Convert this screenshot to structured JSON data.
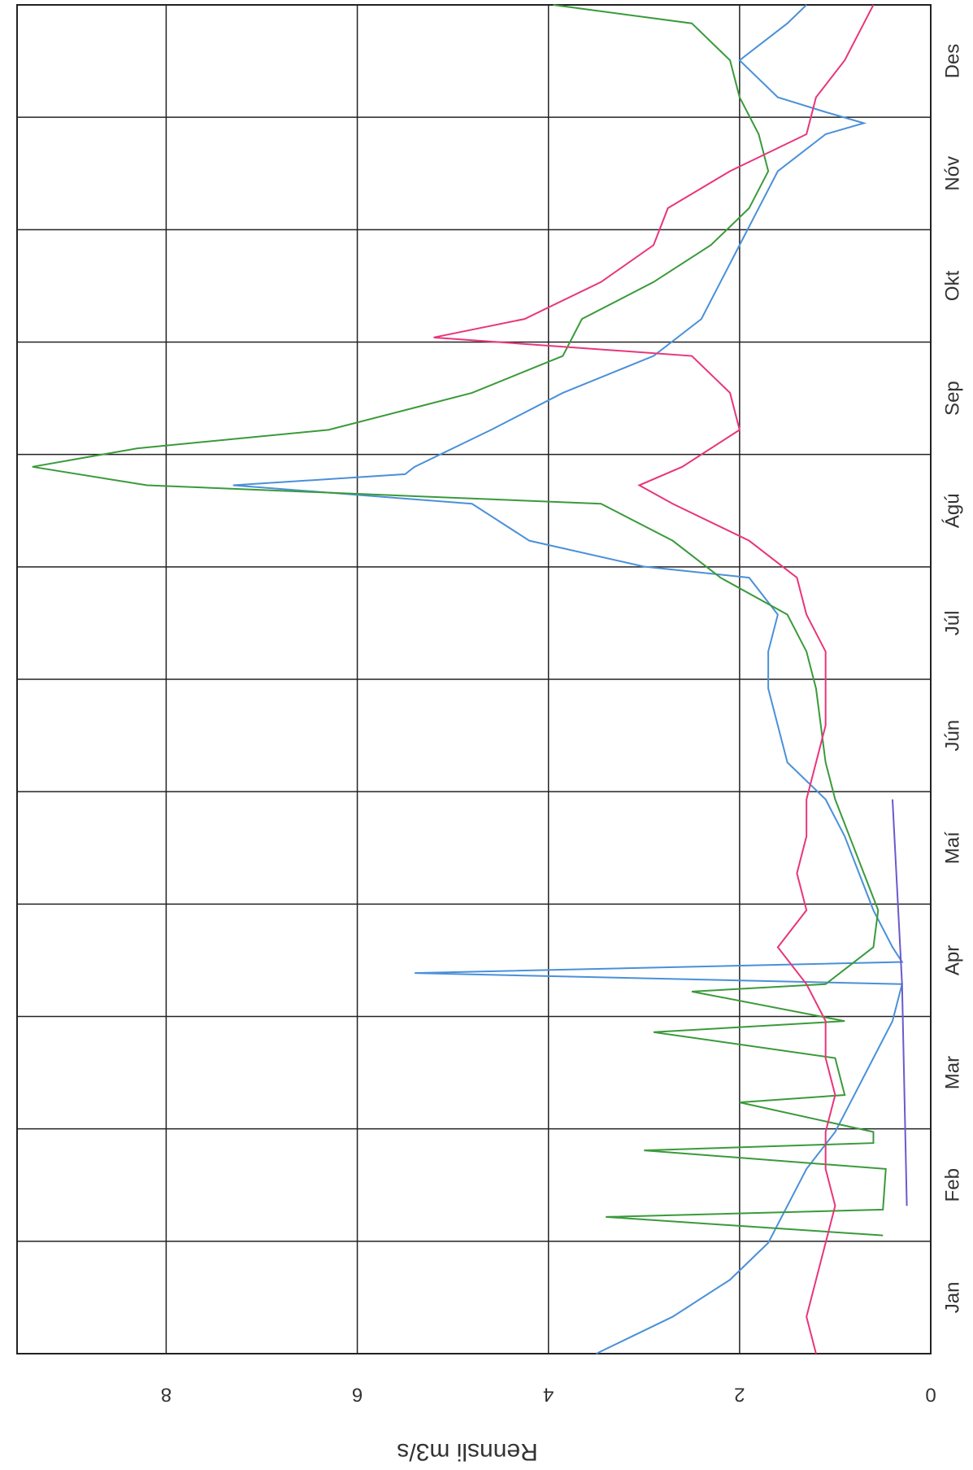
{
  "chart_data": {
    "type": "line",
    "y_label": "Rennsli m3/s",
    "categories": [
      "Jan",
      "Feb",
      "Mar",
      "Apr",
      "Maí",
      "Jún",
      "Júl",
      "Ágú",
      "Sep",
      "Okt",
      "Nóv",
      "Des"
    ],
    "xlim": [
      0,
      365
    ],
    "ylim": [
      0,
      9.56
    ],
    "yticks": [
      0,
      2,
      4,
      6,
      8
    ],
    "grid": true,
    "series": [
      {
        "color": "#4a90d9",
        "x": [
          0,
          10,
          20,
          30,
          40,
          50,
          60,
          70,
          80,
          90,
          100,
          103,
          106,
          110,
          120,
          130,
          140,
          150,
          160,
          170,
          180,
          190,
          200,
          210,
          213,
          220,
          230,
          235,
          238,
          240,
          250,
          260,
          270,
          280,
          290,
          300,
          310,
          320,
          330,
          333,
          336,
          340,
          350,
          360,
          365
        ],
        "values": [
          3.5,
          2.7,
          2.1,
          1.7,
          1.5,
          1.3,
          1.0,
          0.8,
          0.6,
          0.4,
          0.3,
          5.4,
          0.3,
          0.4,
          0.6,
          0.75,
          0.9,
          1.1,
          1.5,
          1.6,
          1.7,
          1.7,
          1.6,
          1.9,
          3.0,
          4.2,
          4.8,
          7.3,
          5.5,
          5.4,
          4.6,
          3.85,
          2.9,
          2.4,
          2.2,
          2.0,
          1.8,
          1.6,
          1.1,
          0.7,
          1.1,
          1.6,
          2.0,
          1.5,
          1.3
        ]
      },
      {
        "color": "#3a9a3a",
        "x": [
          32,
          37,
          39,
          50,
          55,
          57,
          60,
          68,
          70,
          80,
          87,
          90,
          98,
          100,
          110,
          120,
          130,
          140,
          150,
          160,
          170,
          180,
          190,
          200,
          210,
          220,
          230,
          235,
          240,
          245,
          250,
          260,
          270,
          280,
          290,
          300,
          310,
          320,
          330,
          340,
          350,
          360,
          365
        ],
        "values": [
          0.5,
          3.4,
          0.5,
          0.47,
          3.0,
          0.6,
          0.6,
          2.0,
          0.9,
          1.0,
          2.9,
          0.9,
          2.5,
          1.1,
          0.6,
          0.55,
          0.7,
          0.85,
          1.0,
          1.1,
          1.15,
          1.2,
          1.3,
          1.5,
          2.2,
          2.7,
          3.45,
          8.2,
          9.4,
          8.3,
          6.3,
          4.8,
          3.85,
          3.65,
          2.9,
          2.3,
          1.9,
          1.7,
          1.8,
          2.0,
          2.1,
          2.5,
          3.95
        ]
      },
      {
        "color": "#e8357a",
        "x": [
          0,
          10,
          20,
          30,
          40,
          50,
          60,
          70,
          80,
          90,
          100,
          110,
          120,
          130,
          140,
          150,
          160,
          170,
          180,
          190,
          200,
          210,
          220,
          230,
          235,
          240,
          250,
          260,
          270,
          275,
          280,
          290,
          300,
          310,
          320,
          330,
          340,
          350,
          360,
          365
        ],
        "values": [
          1.2,
          1.3,
          1.2,
          1.1,
          1.0,
          1.1,
          1.1,
          1.0,
          1.1,
          1.1,
          1.3,
          1.6,
          1.3,
          1.4,
          1.3,
          1.3,
          1.2,
          1.1,
          1.1,
          1.1,
          1.3,
          1.4,
          1.9,
          2.7,
          3.05,
          2.6,
          2.0,
          2.1,
          2.5,
          5.2,
          4.25,
          3.45,
          2.9,
          2.75,
          2.1,
          1.3,
          1.2,
          0.9,
          0.7,
          0.6
        ]
      },
      {
        "color": "#6a5acd",
        "x": [
          40,
          100,
          150
        ],
        "values": [
          0.25,
          0.3,
          0.4
        ]
      }
    ]
  }
}
